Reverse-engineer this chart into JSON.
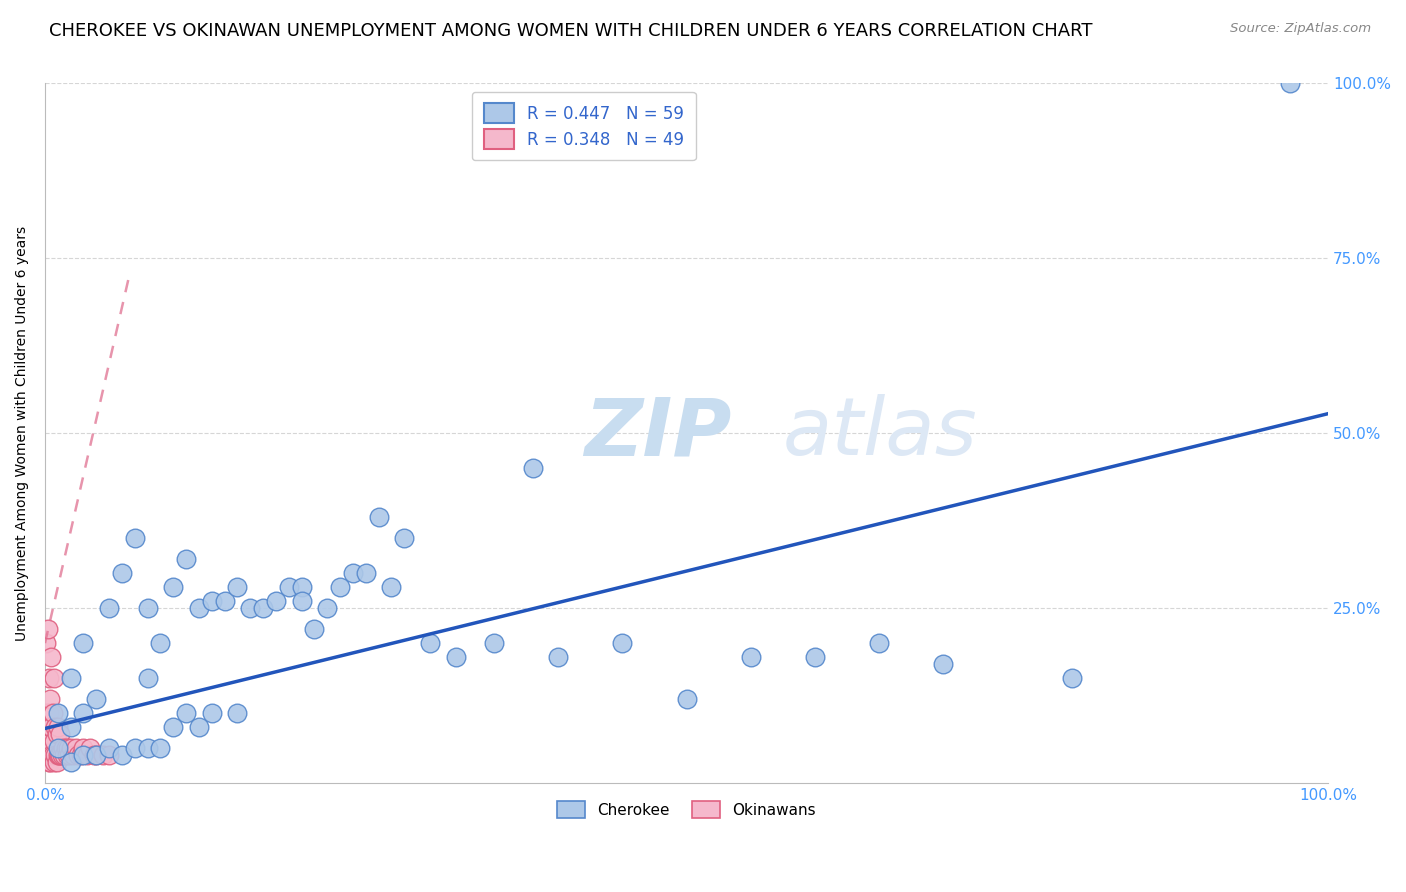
{
  "title": "CHEROKEE VS OKINAWAN UNEMPLOYMENT AMONG WOMEN WITH CHILDREN UNDER 6 YEARS CORRELATION CHART",
  "source": "Source: ZipAtlas.com",
  "ylabel": "Unemployment Among Women with Children Under 6 years",
  "watermark_zip": "ZIP",
  "watermark_atlas": "atlas",
  "cherokee_r": 0.447,
  "cherokee_n": 59,
  "okinawan_r": 0.348,
  "okinawan_n": 49,
  "cherokee_color": "#adc8e8",
  "cherokee_edge_color": "#5588cc",
  "okinawan_color": "#f5b8cc",
  "okinawan_edge_color": "#e06080",
  "trend_cherokee_color": "#2255bb",
  "trend_okinawan_color": "#e07090",
  "cherokee_x": [
    0.01,
    0.01,
    0.02,
    0.02,
    0.02,
    0.03,
    0.03,
    0.03,
    0.04,
    0.04,
    0.05,
    0.05,
    0.06,
    0.06,
    0.07,
    0.07,
    0.08,
    0.08,
    0.08,
    0.09,
    0.09,
    0.1,
    0.1,
    0.11,
    0.11,
    0.12,
    0.12,
    0.13,
    0.13,
    0.14,
    0.15,
    0.15,
    0.16,
    0.17,
    0.18,
    0.19,
    0.2,
    0.2,
    0.21,
    0.22,
    0.23,
    0.24,
    0.25,
    0.26,
    0.27,
    0.28,
    0.3,
    0.32,
    0.35,
    0.38,
    0.4,
    0.45,
    0.5,
    0.55,
    0.6,
    0.65,
    0.7,
    0.8,
    0.97
  ],
  "cherokee_y": [
    0.05,
    0.1,
    0.03,
    0.08,
    0.15,
    0.04,
    0.1,
    0.2,
    0.04,
    0.12,
    0.05,
    0.25,
    0.04,
    0.3,
    0.05,
    0.35,
    0.05,
    0.15,
    0.25,
    0.05,
    0.2,
    0.08,
    0.28,
    0.1,
    0.32,
    0.08,
    0.25,
    0.1,
    0.26,
    0.26,
    0.1,
    0.28,
    0.25,
    0.25,
    0.26,
    0.28,
    0.28,
    0.26,
    0.22,
    0.25,
    0.28,
    0.3,
    0.3,
    0.38,
    0.28,
    0.35,
    0.2,
    0.18,
    0.2,
    0.45,
    0.18,
    0.2,
    0.12,
    0.18,
    0.18,
    0.2,
    0.17,
    0.15,
    1.0
  ],
  "okinawan_x": [
    0.001,
    0.001,
    0.001,
    0.002,
    0.002,
    0.002,
    0.003,
    0.003,
    0.003,
    0.003,
    0.004,
    0.004,
    0.004,
    0.005,
    0.005,
    0.005,
    0.006,
    0.006,
    0.007,
    0.007,
    0.007,
    0.008,
    0.008,
    0.009,
    0.009,
    0.01,
    0.01,
    0.011,
    0.012,
    0.012,
    0.013,
    0.014,
    0.015,
    0.016,
    0.017,
    0.018,
    0.019,
    0.02,
    0.022,
    0.024,
    0.026,
    0.028,
    0.03,
    0.033,
    0.035,
    0.038,
    0.04,
    0.045,
    0.05
  ],
  "okinawan_y": [
    0.05,
    0.1,
    0.2,
    0.04,
    0.07,
    0.22,
    0.03,
    0.06,
    0.1,
    0.15,
    0.03,
    0.08,
    0.12,
    0.04,
    0.08,
    0.18,
    0.04,
    0.1,
    0.03,
    0.06,
    0.15,
    0.04,
    0.08,
    0.03,
    0.07,
    0.04,
    0.08,
    0.04,
    0.04,
    0.07,
    0.04,
    0.05,
    0.04,
    0.05,
    0.04,
    0.05,
    0.04,
    0.05,
    0.04,
    0.05,
    0.04,
    0.04,
    0.05,
    0.04,
    0.05,
    0.04,
    0.04,
    0.04,
    0.04
  ],
  "cherokee_trend_x0": 0.0,
  "cherokee_trend_y0": 0.078,
  "cherokee_trend_x1": 1.0,
  "cherokee_trend_y1": 0.528,
  "okinawan_trend_x0": 0.0,
  "okinawan_trend_y0": 0.2,
  "okinawan_trend_x1": 0.065,
  "okinawan_trend_y1": 0.72,
  "xlim": [
    0.0,
    1.0
  ],
  "ylim": [
    0.0,
    1.0
  ],
  "xticks": [
    0.0,
    0.25,
    0.5,
    0.75,
    1.0
  ],
  "yticks": [
    0.25,
    0.5,
    0.75,
    1.0
  ],
  "background_color": "#ffffff",
  "grid_color": "#cccccc",
  "axis_color": "#bbbbbb",
  "tick_color": "#4499ff",
  "title_fontsize": 13,
  "label_fontsize": 10,
  "tick_fontsize": 11,
  "legend_fontsize": 12
}
